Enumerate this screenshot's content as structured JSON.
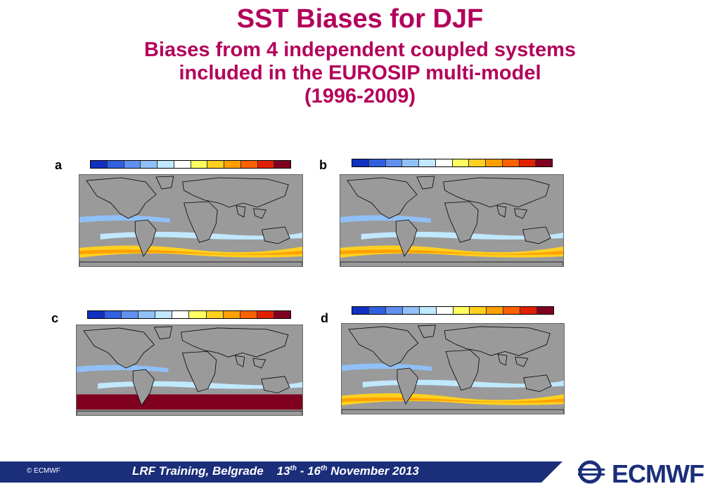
{
  "title": "SST Biases for DJF",
  "subtitle_line1": "Biases from 4 independent coupled systems",
  "subtitle_line2": "included in the EUROSIP multi-model",
  "subtitle_line3": "(1996-2009)",
  "panels": [
    {
      "label": "a"
    },
    {
      "label": "b"
    },
    {
      "label": "c"
    },
    {
      "label": "d"
    }
  ],
  "colorbar_colors": [
    "#1030c0",
    "#3060e0",
    "#6090f0",
    "#90c0f8",
    "#c0e8ff",
    "#ffffff",
    "#ffff60",
    "#ffd020",
    "#ffa000",
    "#ff6000",
    "#e02000",
    "#800020"
  ],
  "footer": {
    "copyright": "© ECMWF",
    "event": "LRF Training, Belgrade",
    "date_start": "13",
    "date_start_sup": "th",
    "date_sep": " - 16",
    "date_end_sup": "th",
    "date_end": " November 2013"
  },
  "logo": {
    "text": "ECMWF"
  },
  "colors": {
    "title": "#b3005a",
    "footer_band": "#1a2e7a",
    "land": "#9a9a9a"
  }
}
